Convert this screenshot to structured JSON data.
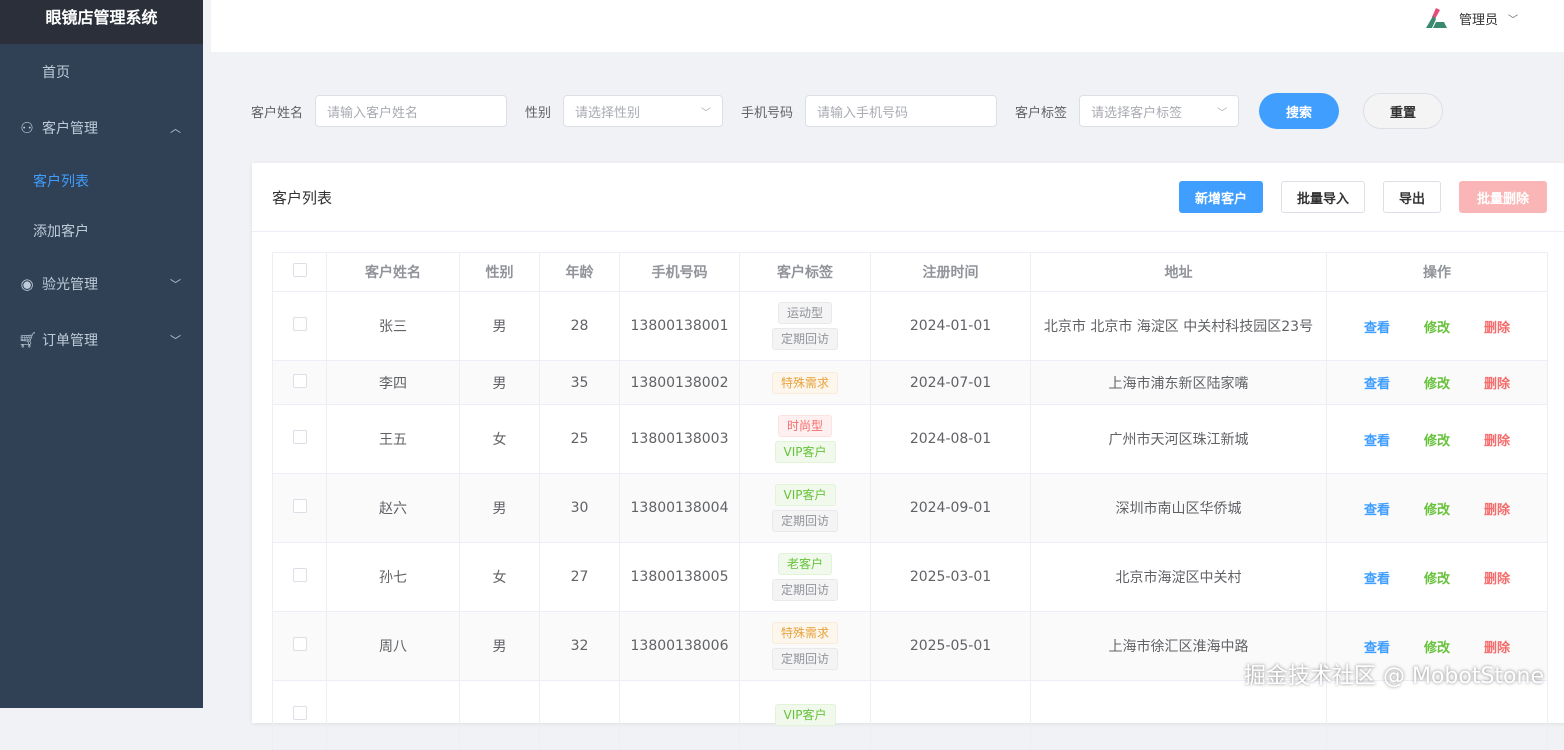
{
  "app": {
    "title": "眼镜店管理系统"
  },
  "sidebar": {
    "items": [
      {
        "label": "首页"
      },
      {
        "label": "客户管理",
        "icon": "user-icon",
        "expanded": true,
        "children": [
          {
            "label": "客户列表",
            "active": true
          },
          {
            "label": "添加客户"
          }
        ]
      },
      {
        "label": "验光管理",
        "icon": "eye-icon"
      },
      {
        "label": "订单管理",
        "icon": "cart-icon"
      }
    ]
  },
  "header": {
    "user": "管理员"
  },
  "search": {
    "name_label": "客户姓名",
    "name_placeholder": "请输入客户姓名",
    "gender_label": "性别",
    "gender_placeholder": "请选择性别",
    "phone_label": "手机号码",
    "phone_placeholder": "请输入手机号码",
    "tag_label": "客户标签",
    "tag_placeholder": "请选择客户标签",
    "search_btn": "搜索",
    "reset_btn": "重置"
  },
  "card": {
    "title": "客户列表",
    "add": "新增客户",
    "import": "批量导入",
    "export": "导出",
    "batch_delete": "批量删除"
  },
  "table": {
    "columns": [
      "客户姓名",
      "性别",
      "年龄",
      "手机号码",
      "客户标签",
      "注册时间",
      "地址",
      "操作"
    ],
    "ops": {
      "view": "查看",
      "edit": "修改",
      "delete": "删除"
    },
    "rows": [
      {
        "name": "张三",
        "gender": "男",
        "age": "28",
        "phone": "13800138001",
        "tags": [
          {
            "t": "运动型",
            "c": "info"
          },
          {
            "t": "定期回访",
            "c": "info"
          }
        ],
        "date": "2024-01-01",
        "address": "北京市 北京市 海淀区 中关村科技园区23号"
      },
      {
        "name": "李四",
        "gender": "男",
        "age": "35",
        "phone": "13800138002",
        "tags": [
          {
            "t": "特殊需求",
            "c": "warning"
          }
        ],
        "date": "2024-07-01",
        "address": "上海市浦东新区陆家嘴"
      },
      {
        "name": "王五",
        "gender": "女",
        "age": "25",
        "phone": "13800138003",
        "tags": [
          {
            "t": "时尚型",
            "c": "danger"
          },
          {
            "t": "VIP客户",
            "c": "success"
          }
        ],
        "date": "2024-08-01",
        "address": "广州市天河区珠江新城"
      },
      {
        "name": "赵六",
        "gender": "男",
        "age": "30",
        "phone": "13800138004",
        "tags": [
          {
            "t": "VIP客户",
            "c": "success"
          },
          {
            "t": "定期回访",
            "c": "info"
          }
        ],
        "date": "2024-09-01",
        "address": "深圳市南山区华侨城"
      },
      {
        "name": "孙七",
        "gender": "女",
        "age": "27",
        "phone": "13800138005",
        "tags": [
          {
            "t": "老客户",
            "c": "success"
          },
          {
            "t": "定期回访",
            "c": "info"
          }
        ],
        "date": "2025-03-01",
        "address": "北京市海淀区中关村"
      },
      {
        "name": "周八",
        "gender": "男",
        "age": "32",
        "phone": "13800138006",
        "tags": [
          {
            "t": "特殊需求",
            "c": "warning"
          },
          {
            "t": "定期回访",
            "c": "info"
          }
        ],
        "date": "2025-05-01",
        "address": "上海市徐汇区淮海中路"
      },
      {
        "name": "",
        "gender": "",
        "age": "",
        "phone": "",
        "tags": [
          {
            "t": "VIP客户",
            "c": "success"
          }
        ],
        "date": "",
        "address": ""
      }
    ]
  },
  "watermark": "掘金技术社区 @ MobotStone"
}
